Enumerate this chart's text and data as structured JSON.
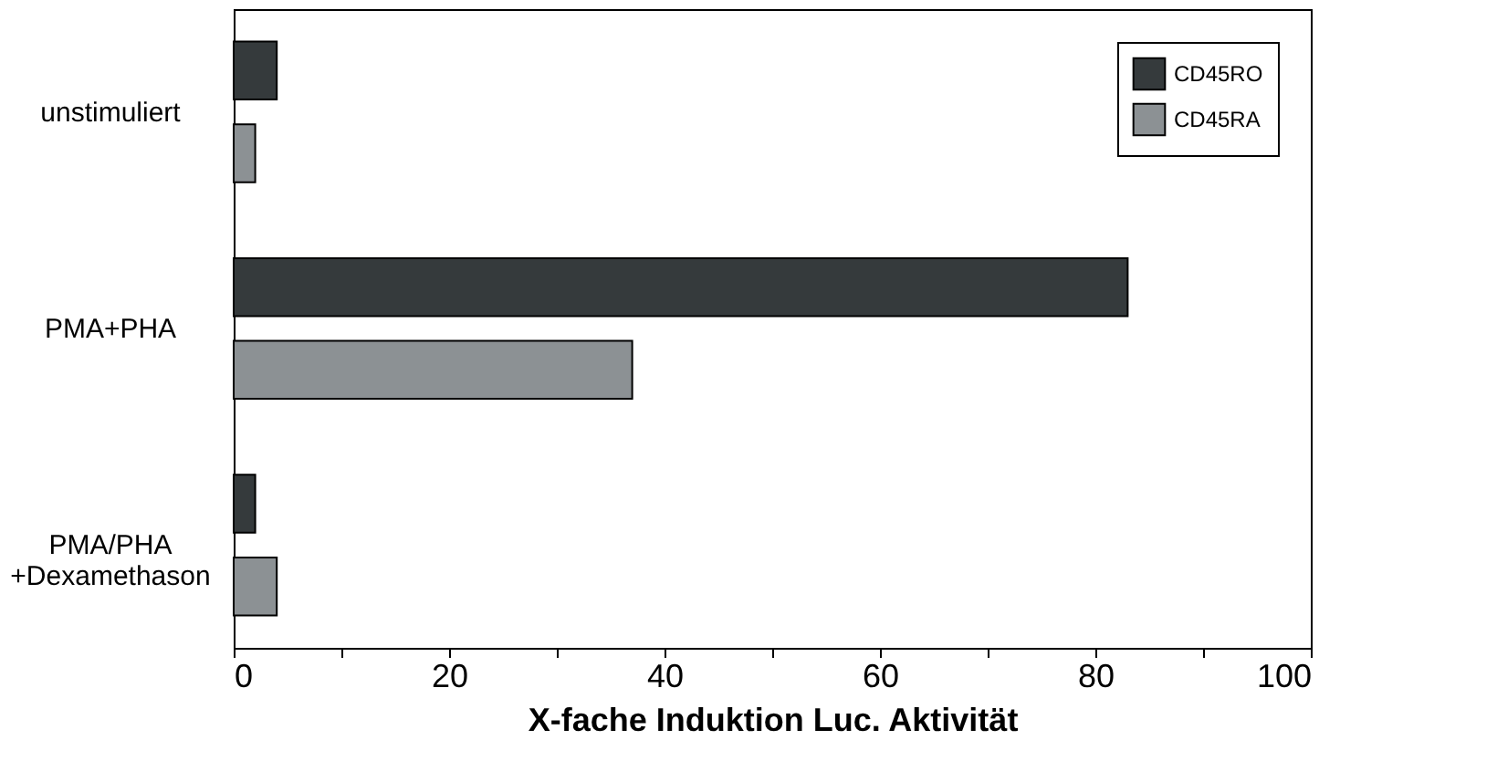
{
  "chart_data": {
    "type": "bar",
    "orientation": "horizontal",
    "xlabel": "X-fache Induktion Luc. Aktivität",
    "categories": [
      "unstimuliert",
      "PMA+PHA",
      "PMA/PHA\n+Dexamethason"
    ],
    "series": [
      {
        "name": "CD45RO",
        "color": "#353a3c",
        "values": [
          4,
          83,
          2
        ]
      },
      {
        "name": "CD45RA",
        "color": "#8c9194",
        "values": [
          2,
          37,
          4
        ]
      }
    ],
    "xlim": [
      0,
      100
    ],
    "xticks": [
      0,
      {
        "value": 10,
        "label": null
      },
      20,
      {
        "value": 30,
        "label": null
      },
      40,
      {
        "value": 50,
        "label": null
      },
      60,
      {
        "value": 70,
        "label": null
      },
      80,
      {
        "value": 90,
        "label": null
      },
      100
    ],
    "grid": false,
    "legend": "top right"
  }
}
